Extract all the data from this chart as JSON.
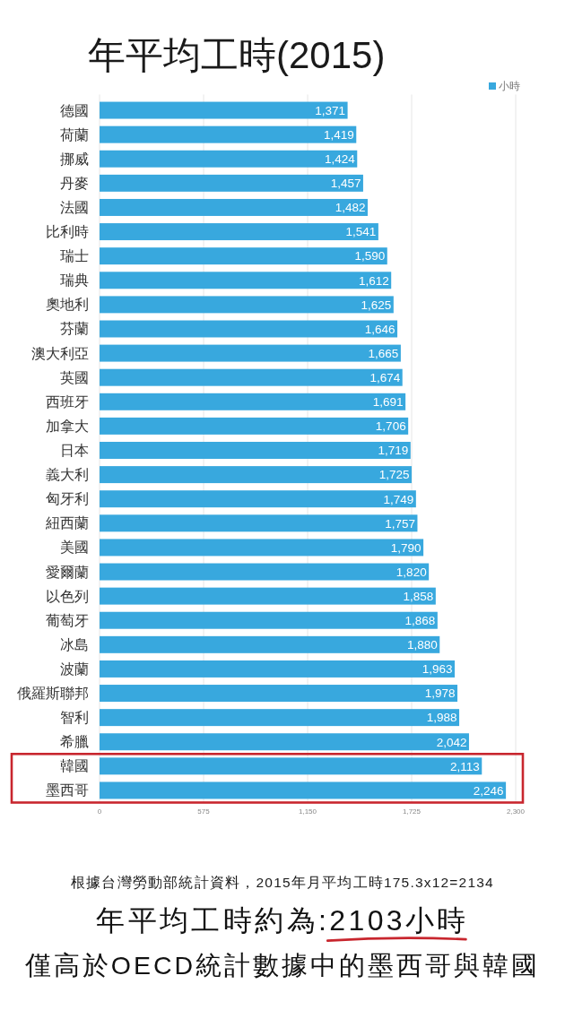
{
  "chart_data": {
    "type": "bar",
    "orientation": "horizontal",
    "title": "年平均工時(2015)",
    "categories": [
      "德國",
      "荷蘭",
      "挪威",
      "丹麥",
      "法國",
      "比利時",
      "瑞士",
      "瑞典",
      "奧地利",
      "芬蘭",
      "澳大利亞",
      "英國",
      "西班牙",
      "加拿大",
      "日本",
      "義大利",
      "匈牙利",
      "紐西蘭",
      "美國",
      "愛爾蘭",
      "以色列",
      "葡萄牙",
      "冰島",
      "波蘭",
      "俄羅斯聯邦",
      "智利",
      "希臘",
      "韓國",
      "墨西哥"
    ],
    "series": [
      {
        "name": "小時",
        "color": "#38a8de",
        "values": [
          1371,
          1419,
          1424,
          1457,
          1482,
          1541,
          1590,
          1612,
          1625,
          1646,
          1665,
          1674,
          1691,
          1706,
          1719,
          1725,
          1749,
          1757,
          1790,
          1820,
          1858,
          1868,
          1880,
          1963,
          1978,
          1988,
          2042,
          2113,
          2246
        ],
        "value_labels": [
          "1,371",
          "1,419",
          "1,424",
          "1,457",
          "1,482",
          "1,541",
          "1,590",
          "1,612",
          "1,625",
          "1,646",
          "1,665",
          "1,674",
          "1,691",
          "1,706",
          "1,719",
          "1,725",
          "1,749",
          "1,757",
          "1,790",
          "1,820",
          "1,858",
          "1,868",
          "1,880",
          "1,963",
          "1,978",
          "1,988",
          "2,042",
          "2,113",
          "2,246"
        ]
      }
    ],
    "xlim": [
      0,
      2300
    ],
    "xticks": [
      0,
      575,
      {
        "value": 1150,
        "label": "1,150"
      },
      {
        "value": 1725,
        "label": "1,725"
      },
      {
        "value": 2300,
        "label": "2,300"
      }
    ],
    "grid": "x",
    "legend": "top right",
    "annotations": [
      "根據台灣勞動部統計資料，2015年月平均工時175.3x12=2134",
      "年平均工時約為:",
      "2103小時",
      "僅高於OECD統計數據中的墨西哥與韓國"
    ]
  }
}
